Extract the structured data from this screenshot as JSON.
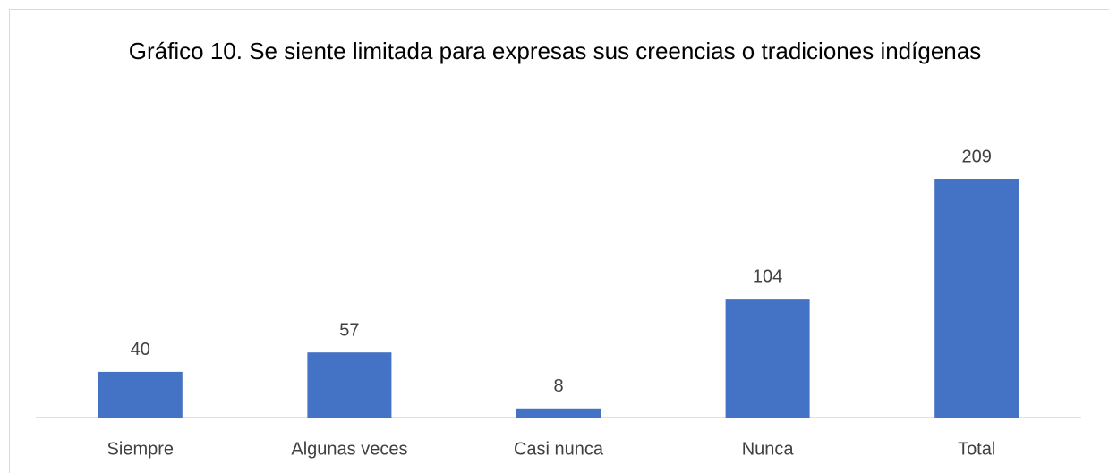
{
  "chart_data": {
    "type": "bar",
    "title": "Gráfico 10. Se siente limitada para expresas sus creencias o tradiciones indígenas",
    "categories": [
      "Siempre",
      "Algunas veces",
      "Casi nunca",
      "Nunca",
      "Total"
    ],
    "values": [
      40,
      57,
      8,
      104,
      209
    ],
    "color": "#4472c4"
  }
}
